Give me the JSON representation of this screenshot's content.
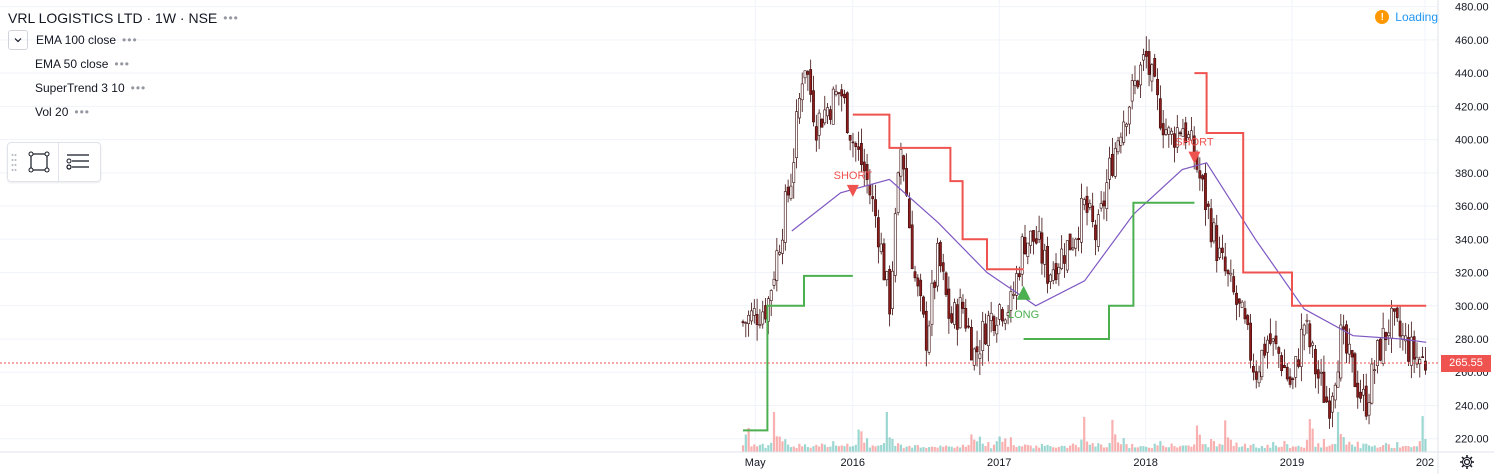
{
  "header": {
    "symbol_title": "VRL LOGISTICS LTD · 1W · NSE",
    "more_dots": "•••"
  },
  "indicators": [
    {
      "label": "EMA 100 close",
      "dots": "•••"
    },
    {
      "label": "EMA 50 close",
      "dots": "•••"
    },
    {
      "label": "SuperTrend 3 10",
      "dots": "•••"
    },
    {
      "label": "Vol 20",
      "dots": "•••"
    }
  ],
  "status": {
    "loading_text": "Loading",
    "warning_glyph": "!"
  },
  "last_price": {
    "label": "265.55",
    "value": 265.55
  },
  "icons": [
    "chevron-down-icon",
    "rectangle-tool-icon",
    "object-tree-icon",
    "warning-icon",
    "gear-icon",
    "drag-handle-icon"
  ],
  "colors": {
    "up": "#26a69a",
    "down": "#ef5350",
    "candle_up_body": "#ffffff",
    "candle_down_body": "#8d1d1d",
    "ema": "#7e57c2",
    "supertrend_up": "#4caf50",
    "supertrend_down": "#ef5350",
    "grid": "#f0f3fa",
    "text": "#131722",
    "accent": "#2196f3"
  },
  "chart_data": {
    "type": "candlestick",
    "y_axis": {
      "ticks": [
        220,
        240,
        260,
        280,
        300,
        320,
        340,
        360,
        380,
        400,
        420,
        440,
        460,
        480
      ],
      "range": [
        212,
        484
      ],
      "position": "right"
    },
    "x_axis": {
      "ticks": [
        "May",
        "2016",
        "2017",
        "2018",
        "2019",
        "202"
      ]
    },
    "grid": true,
    "annotations": [
      {
        "text": "SHORT",
        "type": "sell-signal",
        "date": "2016-01",
        "value": 380
      },
      {
        "text": "LONG",
        "type": "buy-signal",
        "date": "2017-03",
        "value": 300
      },
      {
        "text": "SHORT",
        "type": "sell-signal",
        "date": "2018-05",
        "value": 400
      }
    ],
    "price_path": {
      "dates": [
        "2015-04",
        "2015-06",
        "2015-08",
        "2015-09",
        "2015-10",
        "2015-11",
        "2015-12",
        "2016-01",
        "2016-02",
        "2016-03",
        "2016-04",
        "2016-05",
        "2016-06",
        "2016-07",
        "2016-08",
        "2016-09",
        "2016-10",
        "2016-11",
        "2016-12",
        "2017-01",
        "2017-02",
        "2017-03",
        "2017-04",
        "2017-05",
        "2017-06",
        "2017-07",
        "2017-08",
        "2017-09",
        "2017-10",
        "2017-11",
        "2017-12",
        "2018-01",
        "2018-02",
        "2018-03",
        "2018-04",
        "2018-05",
        "2018-06",
        "2018-07",
        "2018-08",
        "2018-09",
        "2018-10",
        "2018-11",
        "2018-12",
        "2019-01",
        "2019-02",
        "2019-03",
        "2019-04",
        "2019-05",
        "2019-06",
        "2019-07",
        "2019-08",
        "2019-09",
        "2019-10",
        "2019-11",
        "2019-12"
      ],
      "close": [
        290,
        300,
        380,
        450,
        410,
        420,
        430,
        400,
        380,
        350,
        300,
        400,
        320,
        280,
        330,
        290,
        300,
        270,
        290,
        300,
        300,
        340,
        340,
        320,
        330,
        340,
        360,
        340,
        380,
        410,
        430,
        450,
        420,
        400,
        410,
        390,
        360,
        330,
        310,
        290,
        260,
        280,
        270,
        250,
        290,
        260,
        240,
        280,
        260,
        240,
        270,
        290,
        280,
        270,
        266
      ]
    },
    "ema_100": {
      "dates": [
        "2015-08",
        "2015-12",
        "2016-04",
        "2016-08",
        "2016-12",
        "2017-04",
        "2017-08",
        "2017-12",
        "2018-04",
        "2018-06",
        "2018-10",
        "2019-02",
        "2019-06",
        "2019-10",
        "2019-12"
      ],
      "values": [
        345,
        368,
        376,
        350,
        320,
        300,
        315,
        355,
        382,
        386,
        340,
        298,
        282,
        280,
        278
      ]
    },
    "supertrend": {
      "segments": [
        {
          "direction": "up",
          "dates": [
            "2015-04",
            "2015-06",
            "2015-08",
            "2015-09",
            "2015-12",
            "2016-01"
          ],
          "values": [
            225,
            300,
            300,
            318,
            318,
            318
          ]
        },
        {
          "direction": "down",
          "dates": [
            "2016-01",
            "2016-03",
            "2016-04",
            "2016-07",
            "2016-09",
            "2016-10",
            "2016-12",
            "2017-03"
          ],
          "values": [
            415,
            415,
            395,
            395,
            375,
            340,
            322,
            322
          ]
        },
        {
          "direction": "up",
          "dates": [
            "2017-03",
            "2017-04",
            "2017-08",
            "2017-10",
            "2017-12",
            "2018-05"
          ],
          "values": [
            280,
            280,
            280,
            300,
            362,
            362
          ]
        },
        {
          "direction": "down",
          "dates": [
            "2018-05",
            "2018-06",
            "2018-08",
            "2018-09",
            "2018-12",
            "2019-01",
            "2019-12"
          ],
          "values": [
            440,
            404,
            404,
            320,
            320,
            300,
            300
          ]
        }
      ]
    },
    "volume": {
      "series_name": "Vol 20",
      "relative_levels": [
        0.3,
        0.8,
        0.5,
        0.2,
        0.3,
        0.15,
        0.25,
        0.2,
        0.1,
        0.15,
        0.2,
        0.9,
        0.4,
        0.3,
        0.2,
        0.3,
        0.15,
        0.1,
        0.2,
        0.1,
        0.15,
        0.2,
        0.15,
        0.1,
        0.12,
        0.1,
        0.15,
        0.12,
        0.2,
        0.15,
        0.1,
        0.12,
        0.2,
        0.15,
        0.1,
        0.12,
        0.1,
        0.15,
        0.12,
        0.1
      ]
    },
    "last_price": 265.55
  }
}
